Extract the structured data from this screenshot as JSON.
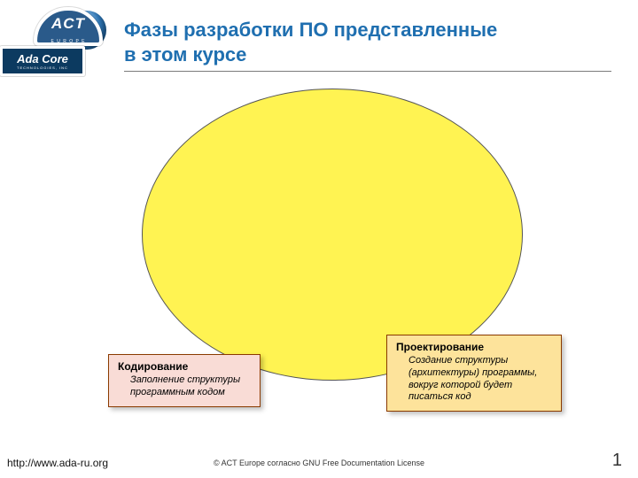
{
  "colors": {
    "title": "#1f6fb0",
    "rule": "#7b7b7b",
    "ellipse_fill": "#fff352",
    "ellipse_border": "#555555",
    "box_border": "#8a3a00",
    "box_left_fill": "#f9dcd6",
    "box_right_fill": "#fde39b",
    "badge_blue": "#2a5a8a",
    "badge_navy": "#0c3a60"
  },
  "logo": {
    "act_text": "ACT",
    "act_sub": "E U R O P E",
    "adacore_l1": "Ada Core",
    "adacore_l2": "TECHNOLOGIES, INC"
  },
  "title": {
    "line1": "Фазы разработки ПО представленные",
    "line2": "в этом курсе"
  },
  "boxes": {
    "left": {
      "title": "Кодирование",
      "desc": "Заполнение структуры программным кодом"
    },
    "right": {
      "title": "Проектирование",
      "desc": "Создание структуры (архитектуры) программы, вокруг которой будет писаться код"
    }
  },
  "footer": {
    "url": "http://www.ada-ru.org",
    "copyright": "© ACT Europe согласно GNU Free Documentation License",
    "page": "1"
  }
}
